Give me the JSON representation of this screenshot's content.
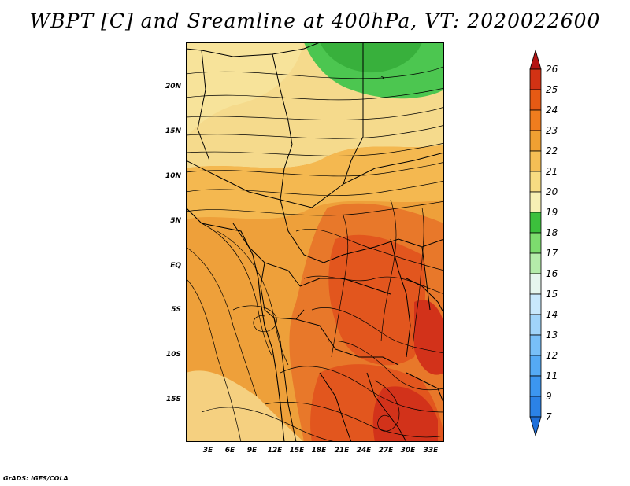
{
  "title": "WBPT [C] and Sreamline at 400hPa, VT: 2020022600",
  "footer": "GrADS: IGES/COLA",
  "map": {
    "lat_labels": [
      "20N",
      "15N",
      "10N",
      "5N",
      "EQ",
      "5S",
      "10S",
      "15S"
    ],
    "lon_labels": [
      "3E",
      "6E",
      "9E",
      "12E",
      "15E",
      "18E",
      "21E",
      "24E",
      "27E",
      "30E",
      "33E"
    ]
  },
  "colorbar": {
    "labels": [
      "7",
      "9",
      "11",
      "12",
      "13",
      "14",
      "15",
      "16",
      "17",
      "18",
      "19",
      "20",
      "21",
      "22",
      "23",
      "24",
      "25",
      "26"
    ],
    "colors": [
      "#1e6fd9",
      "#2b82e6",
      "#3c96f0",
      "#55aaf5",
      "#78bff8",
      "#a0d4fa",
      "#c8e8fc",
      "#e6f6ee",
      "#b4ecaa",
      "#7ddc6e",
      "#3cc03c",
      "#f7f0b4",
      "#f7dc82",
      "#f5be55",
      "#f0a032",
      "#f07d1e",
      "#e65a14",
      "#d23214",
      "#b41414"
    ]
  },
  "colors": {
    "green": "#4cc650",
    "pale": "#f5da8c",
    "light_orange": "#f4b850",
    "orange": "#eea03a",
    "dark_orange": "#e8782a",
    "red_orange": "#e2561e",
    "red": "#d2321a"
  }
}
